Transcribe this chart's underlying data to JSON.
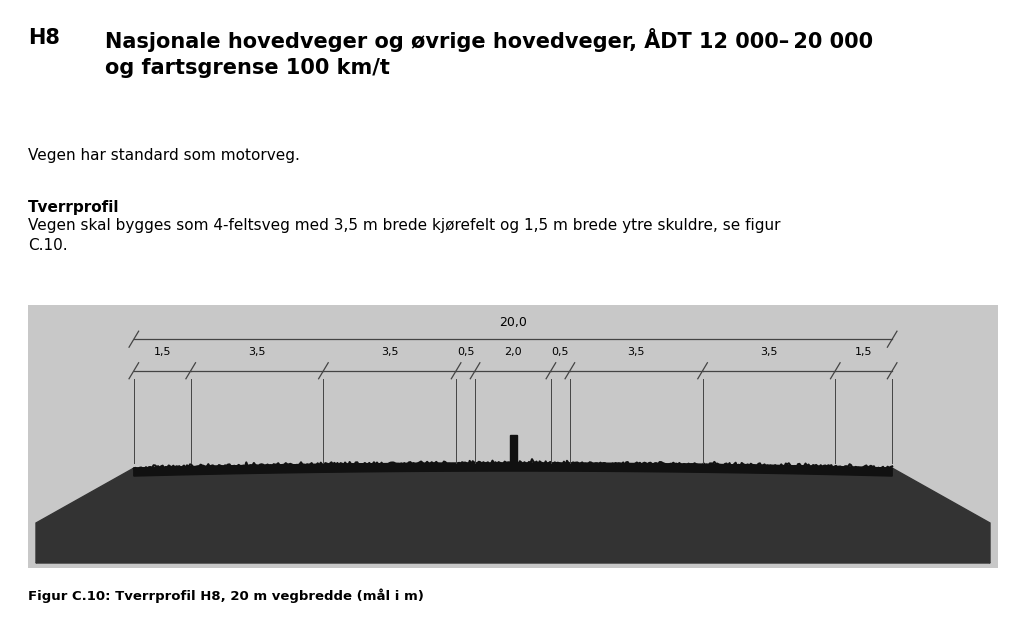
{
  "title_label": "H8",
  "title_text": "Nasjonale hovedveger og øvrige hovedveger, ÅDT 12 000– 20 000\nog fartsgrense 100 km/t",
  "body_text1": "Vegen har standard som motorveg.",
  "subtitle_bold": "Tverrprofil",
  "body_text2": "Vegen skal bygges som 4-feltsveg med 3,5 m brede kjørefelt og 1,5 m brede ytre skuldre, se figur\nC.10.",
  "fig_caption": "Figur C.10: Tverrprofil H8, 20 m vegbredde (mål i m)",
  "page_bg": "#ffffff",
  "segment_labels": [
    "1,5",
    "3,5",
    "3,5",
    "0,5",
    "2,0",
    "0,5",
    "3,5",
    "3,5",
    "1,5"
  ],
  "segment_widths": [
    1.5,
    3.5,
    3.5,
    0.5,
    2.0,
    0.5,
    3.5,
    3.5,
    1.5
  ],
  "total_label": "20,0",
  "diagram_bg": "#c8c8c8",
  "road_dark": "#111111",
  "dim_color": "#444444"
}
